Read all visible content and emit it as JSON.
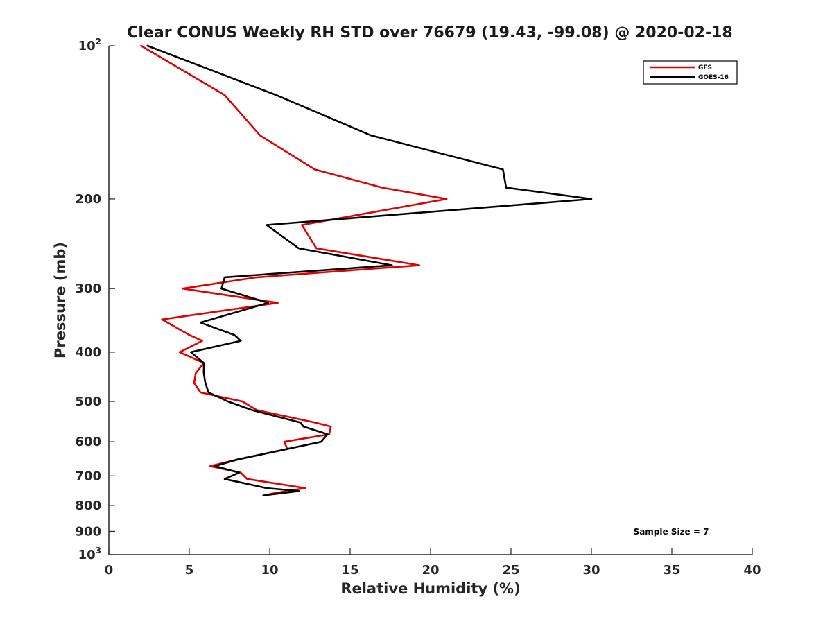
{
  "chart_data": {
    "type": "line",
    "title": "Clear CONUS Weekly RH STD over 76679 (19.43, -99.08) @ 2020-02-18",
    "xlabel": "Relative Humidity (%)",
    "ylabel": "Pressure (mb)",
    "xlim": [
      0,
      40
    ],
    "ylim": [
      100,
      1000
    ],
    "y_scale": "log",
    "y_reversed": true,
    "grid": false,
    "x_ticks": [
      0,
      5,
      10,
      15,
      20,
      25,
      30,
      35,
      40
    ],
    "x_tick_labels": [
      "0",
      "5",
      "10",
      "15",
      "20",
      "25",
      "30",
      "35",
      "40"
    ],
    "y_ticks": [
      200,
      300,
      400,
      500,
      600,
      700,
      800,
      900
    ],
    "y_tick_labels": [
      "200",
      "300",
      "400",
      "500",
      "600",
      "700",
      "800",
      "900"
    ],
    "y_tick_top": {
      "base": "10",
      "exp": "2"
    },
    "y_tick_bottom": {
      "base": "10",
      "exp": "3"
    },
    "legend_position": "top-right",
    "annotation": "Sample Size = 7",
    "series": [
      {
        "name": "GFS",
        "color": "#e00000",
        "points": [
          [
            2.0,
            100
          ],
          [
            7.2,
            125
          ],
          [
            9.4,
            150
          ],
          [
            12.8,
            175
          ],
          [
            17.0,
            190
          ],
          [
            21.0,
            200
          ],
          [
            12.0,
            225
          ],
          [
            12.9,
            250
          ],
          [
            19.3,
            270
          ],
          [
            9.2,
            285
          ],
          [
            4.6,
            300
          ],
          [
            10.5,
            320
          ],
          [
            3.3,
            345
          ],
          [
            5.0,
            370
          ],
          [
            5.8,
            380
          ],
          [
            4.4,
            400
          ],
          [
            5.9,
            420
          ],
          [
            5.4,
            440
          ],
          [
            5.3,
            460
          ],
          [
            5.7,
            480
          ],
          [
            8.3,
            500
          ],
          [
            9.2,
            520
          ],
          [
            12.8,
            550
          ],
          [
            13.8,
            560
          ],
          [
            13.7,
            580
          ],
          [
            10.9,
            600
          ],
          [
            11.1,
            620
          ],
          [
            8.0,
            650
          ],
          [
            6.3,
            670
          ],
          [
            8.2,
            690
          ],
          [
            8.6,
            710
          ],
          [
            12.2,
            740
          ],
          [
            10.0,
            760
          ]
        ]
      },
      {
        "name": "GOES-16",
        "color": "#000000",
        "points": [
          [
            2.4,
            100
          ],
          [
            10.4,
            125
          ],
          [
            16.3,
            150
          ],
          [
            24.5,
            175
          ],
          [
            24.7,
            190
          ],
          [
            30.0,
            200
          ],
          [
            9.8,
            225
          ],
          [
            11.8,
            250
          ],
          [
            17.6,
            270
          ],
          [
            7.2,
            285
          ],
          [
            7.0,
            300
          ],
          [
            9.9,
            320
          ],
          [
            5.7,
            350
          ],
          [
            7.8,
            370
          ],
          [
            8.2,
            380
          ],
          [
            5.1,
            400
          ],
          [
            5.9,
            420
          ],
          [
            5.9,
            440
          ],
          [
            6.0,
            460
          ],
          [
            6.2,
            480
          ],
          [
            7.4,
            500
          ],
          [
            8.9,
            520
          ],
          [
            11.9,
            550
          ],
          [
            12.1,
            560
          ],
          [
            13.6,
            580
          ],
          [
            13.2,
            600
          ],
          [
            8.0,
            650
          ],
          [
            6.6,
            670
          ],
          [
            8.1,
            690
          ],
          [
            7.2,
            710
          ],
          [
            9.8,
            740
          ],
          [
            11.8,
            750
          ],
          [
            9.6,
            765
          ]
        ]
      }
    ]
  }
}
